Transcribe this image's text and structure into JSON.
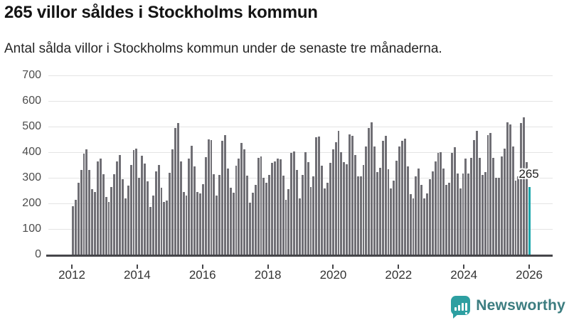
{
  "header": {
    "title": "265 villor såldes i Stockholms kommun",
    "subtitle": "Antal sålda villor i Stockholms kommun under de senaste tre månaderna."
  },
  "chart_data": {
    "type": "bar",
    "title": "265 villor såldes i Stockholms kommun",
    "subtitle": "Antal sålda villor i Stockholms kommun under de senaste tre månaderna.",
    "unit": "antal sålda villor (rullande tre månader)",
    "x_start_year": 2012,
    "x_frequency": "monthly",
    "values": [
      190,
      215,
      280,
      330,
      395,
      410,
      330,
      255,
      245,
      365,
      375,
      315,
      225,
      205,
      265,
      315,
      365,
      390,
      295,
      220,
      270,
      350,
      408,
      415,
      300,
      385,
      355,
      285,
      185,
      230,
      325,
      350,
      260,
      205,
      210,
      320,
      410,
      495,
      513,
      365,
      245,
      230,
      375,
      425,
      345,
      245,
      240,
      275,
      380,
      450,
      447,
      313,
      230,
      310,
      445,
      467,
      335,
      262,
      243,
      348,
      375,
      437,
      410,
      307,
      202,
      243,
      273,
      377,
      382,
      300,
      280,
      312,
      358,
      363,
      374,
      371,
      307,
      214,
      256,
      397,
      403,
      330,
      220,
      310,
      400,
      360,
      264,
      305,
      458,
      462,
      346,
      258,
      281,
      359,
      410,
      440,
      482,
      400,
      360,
      354,
      470,
      464,
      389,
      306,
      306,
      350,
      421,
      495,
      518,
      421,
      321,
      340,
      445,
      465,
      333,
      258,
      290,
      368,
      421,
      444,
      453,
      344,
      235,
      219,
      305,
      335,
      273,
      219,
      240,
      294,
      326,
      363,
      397,
      400,
      335,
      273,
      281,
      396,
      419,
      317,
      258,
      318,
      374,
      317,
      377,
      447,
      484,
      377,
      310,
      322,
      467,
      476,
      377,
      300,
      300,
      382,
      414,
      518,
      507,
      421,
      290,
      305,
      513,
      536,
      360,
      265
    ],
    "highlight_last": true,
    "highlight_label": "265",
    "ylim": [
      0,
      700
    ],
    "y_ticks": [
      0,
      100,
      200,
      300,
      400,
      500,
      600,
      700
    ],
    "x_tick_labels": [
      "2012",
      "2014",
      "2016",
      "2018",
      "2020",
      "2022",
      "2024",
      "2026"
    ],
    "grid": true,
    "legend": "none",
    "bar_color": "#706f75",
    "highlight_color": "#1ca7ac"
  },
  "footer": {
    "brand": "Newsworthy",
    "logo_icon": "newsworthy-bar-chart-icon",
    "logo_color": "#2d9fa1",
    "brand_text_color": "#3c7d80"
  }
}
